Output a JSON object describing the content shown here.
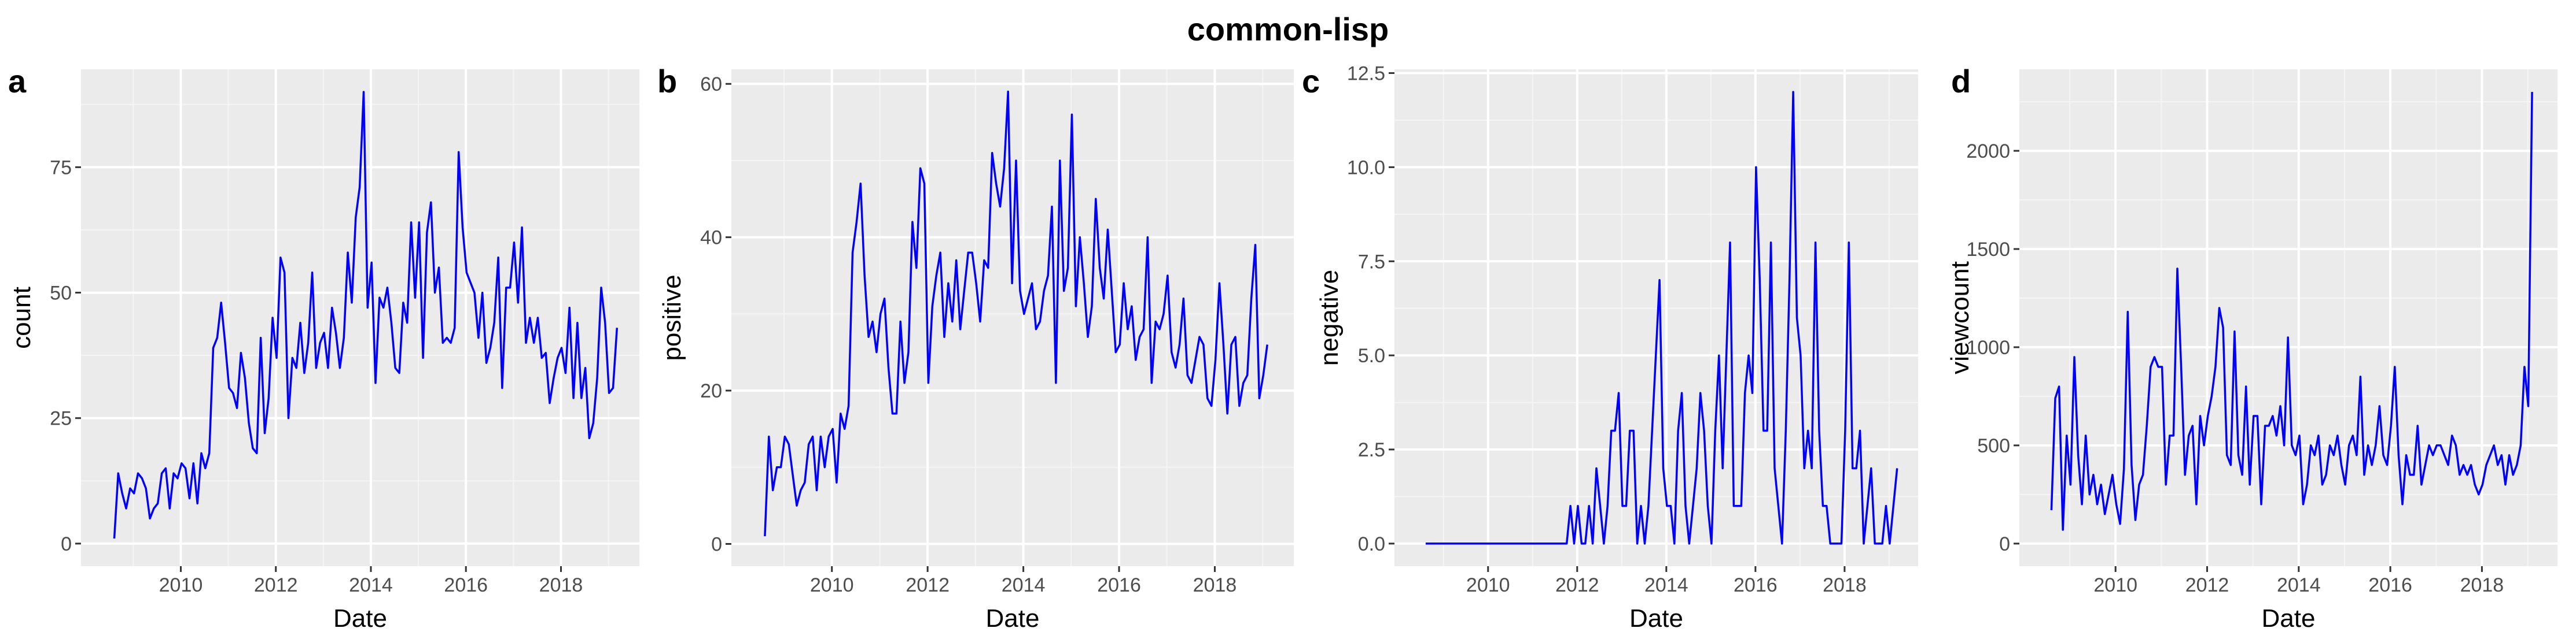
{
  "figure": {
    "title": "common-lisp"
  },
  "colors": {
    "line": "#0000ff",
    "panel_bg": "#ebebeb",
    "grid_major": "#ffffff",
    "grid_minor": "#f5f5f5",
    "tick_text": "#4d4d4d"
  },
  "chart_data": [
    {
      "type": "line",
      "panel_label": "a",
      "xlabel": "Date",
      "ylabel": "count",
      "xlim": [
        2007.9,
        2019.65
      ],
      "ylim": [
        -4.5,
        94.5
      ],
      "yticks": [
        0,
        25,
        50,
        75
      ],
      "xticks": [
        2010,
        2012,
        2014,
        2016,
        2018
      ],
      "grid": true,
      "x_start": 2008.6,
      "x_step": 0.0833,
      "values": [
        1,
        14,
        10,
        7,
        11,
        10,
        14,
        13,
        11,
        5,
        7,
        8,
        14,
        15,
        7,
        14,
        13,
        16,
        15,
        9,
        16,
        8,
        18,
        15,
        18,
        39,
        41,
        48,
        40,
        31,
        30,
        27,
        38,
        33,
        24,
        19,
        18,
        41,
        22,
        29,
        45,
        37,
        57,
        54,
        25,
        37,
        35,
        44,
        34,
        40,
        54,
        35,
        40,
        42,
        35,
        47,
        42,
        35,
        41,
        58,
        48,
        65,
        71,
        90,
        47,
        56,
        32,
        49,
        47,
        51,
        44,
        35,
        34,
        48,
        44,
        64,
        49,
        64,
        37,
        62,
        68,
        50,
        55,
        40,
        41,
        40,
        43,
        78,
        63,
        54,
        52,
        50,
        41,
        50,
        36,
        39,
        44,
        57,
        31,
        51,
        51,
        60,
        48,
        63,
        40,
        45,
        40,
        45,
        37,
        38,
        28,
        33,
        37,
        39,
        34,
        47,
        29,
        44,
        29,
        35,
        21,
        24,
        33,
        51,
        44,
        30,
        31,
        43
      ]
    },
    {
      "type": "line",
      "panel_label": "b",
      "xlabel": "Date",
      "ylabel": "positive",
      "xlim": [
        2007.9,
        2019.65
      ],
      "ylim": [
        -2.9,
        61.9
      ],
      "yticks": [
        0,
        20,
        40,
        60
      ],
      "xticks": [
        2010,
        2012,
        2014,
        2016,
        2018
      ],
      "grid": true,
      "x_start": 2008.6,
      "x_step": 0.0833,
      "values": [
        1,
        14,
        7,
        10,
        10,
        14,
        13,
        9,
        5,
        7,
        8,
        13,
        14,
        7,
        14,
        10,
        14,
        15,
        8,
        17,
        15,
        18,
        38,
        42,
        47,
        35,
        27,
        29,
        25,
        30,
        32,
        23,
        17,
        17,
        29,
        21,
        25,
        42,
        36,
        49,
        47,
        21,
        31,
        35,
        38,
        27,
        34,
        29,
        37,
        28,
        33,
        38,
        38,
        34,
        29,
        37,
        36,
        51,
        47,
        44,
        49,
        59,
        34,
        50,
        33,
        30,
        32,
        34,
        28,
        29,
        33,
        35,
        44,
        21,
        50,
        33,
        36,
        56,
        31,
        40,
        34,
        27,
        31,
        45,
        36,
        32,
        41,
        33,
        25,
        26,
        34,
        28,
        31,
        24,
        27,
        28,
        40,
        21,
        29,
        28,
        30,
        35,
        25,
        23,
        26,
        32,
        22,
        21,
        24,
        27,
        26,
        19,
        18,
        24,
        34,
        26,
        17,
        26,
        27,
        18,
        21,
        22,
        32,
        39,
        19,
        22,
        26
      ]
    },
    {
      "type": "line",
      "panel_label": "c",
      "xlabel": "Date",
      "ylabel": "negative",
      "xlim": [
        2007.9,
        2019.65
      ],
      "ylim": [
        -0.6,
        12.6
      ],
      "yticks": [
        0.0,
        2.5,
        5.0,
        7.5,
        10.0,
        12.5
      ],
      "ytick_labels": [
        "0.0",
        "2.5",
        "5.0",
        "7.5",
        "10.0",
        "12.5"
      ],
      "xticks": [
        2010,
        2012,
        2014,
        2016,
        2018
      ],
      "grid": true,
      "x_start": 2008.6,
      "x_step": 0.0833,
      "values": [
        0,
        0,
        0,
        0,
        0,
        0,
        0,
        0,
        0,
        0,
        0,
        0,
        0,
        0,
        0,
        0,
        0,
        0,
        0,
        0,
        0,
        0,
        0,
        0,
        0,
        0,
        0,
        0,
        0,
        0,
        0,
        0,
        0,
        0,
        0,
        0,
        0,
        0,
        0,
        1,
        0,
        1,
        0,
        0,
        1,
        0,
        2,
        1,
        0,
        1,
        3,
        3,
        4,
        1,
        1,
        3,
        3,
        0,
        1,
        0,
        1,
        3,
        5,
        7,
        2,
        1,
        1,
        0,
        3,
        4,
        1,
        0,
        1,
        2,
        4,
        3,
        1,
        0,
        3,
        5,
        2,
        5,
        8,
        1,
        1,
        1,
        4,
        5,
        4,
        10,
        7,
        3,
        3,
        8,
        2,
        1,
        0,
        3,
        7,
        12,
        6,
        5,
        2,
        3,
        2,
        8,
        3,
        1,
        1,
        0,
        0,
        0,
        0,
        3,
        8,
        2,
        2,
        3,
        0,
        1,
        2,
        0,
        0,
        0,
        1,
        0,
        1,
        2
      ]
    },
    {
      "type": "line",
      "panel_label": "d",
      "xlabel": "Date",
      "ylabel": "viewcount",
      "xlim": [
        2007.9,
        2019.65
      ],
      "ylim": [
        -115,
        2415
      ],
      "yticks": [
        0,
        500,
        1000,
        1500,
        2000
      ],
      "xticks": [
        2010,
        2012,
        2014,
        2016,
        2018
      ],
      "grid": true,
      "x_start": 2008.6,
      "x_step": 0.0833,
      "values": [
        170,
        740,
        800,
        70,
        550,
        300,
        950,
        450,
        200,
        550,
        250,
        350,
        200,
        300,
        150,
        250,
        350,
        200,
        100,
        380,
        1180,
        400,
        120,
        300,
        350,
        600,
        900,
        950,
        900,
        900,
        300,
        550,
        550,
        1400,
        900,
        350,
        550,
        600,
        200,
        650,
        500,
        650,
        750,
        900,
        1200,
        1100,
        450,
        400,
        1080,
        450,
        350,
        800,
        300,
        650,
        650,
        200,
        600,
        600,
        650,
        550,
        700,
        500,
        1050,
        500,
        450,
        550,
        200,
        300,
        500,
        450,
        550,
        300,
        350,
        500,
        450,
        550,
        400,
        300,
        500,
        550,
        450,
        850,
        350,
        500,
        400,
        500,
        700,
        450,
        400,
        600,
        900,
        450,
        200,
        450,
        350,
        350,
        600,
        300,
        400,
        500,
        450,
        500,
        500,
        450,
        400,
        550,
        500,
        350,
        400,
        350,
        400,
        300,
        250,
        300,
        400,
        450,
        500,
        400,
        450,
        300,
        450,
        350,
        400,
        500,
        900,
        700,
        2300
      ]
    }
  ]
}
